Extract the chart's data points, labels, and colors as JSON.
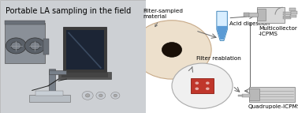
{
  "title": "Portable LA sampling in the field",
  "title_fontsize": 7.0,
  "bg_color_left": "#cdd0d4",
  "labels": {
    "filter_sampled": "Filter-sampled\nmaterial",
    "acid_digestion": "Acid digestion",
    "filter_reablation": "Filter reablation",
    "multicollector": "Multicollector\n-ICPMS",
    "quadrupole": "Quadrupole-ICPMS"
  },
  "label_fontsize": 5.2,
  "arrow_color": "#666666",
  "filter_color": "#ede0cc",
  "filter_hole_color": "#1a1008",
  "filter_border": "#c8aa88",
  "reab_circle_color": "#f0f0f0",
  "reab_border": "#aaaaaa",
  "reab_square": "#c0362b",
  "reab_square_border": "#8b1a10",
  "tube_fill": "#5b9bd5",
  "tube_glass": "#d8eeff",
  "tube_border": "#4488bb",
  "mc_box_fill": "#d8d8d8",
  "mc_box_border": "#888888",
  "qp_fill": "#d0d0d0",
  "qp_border": "#888888",
  "line_color": "#777777"
}
